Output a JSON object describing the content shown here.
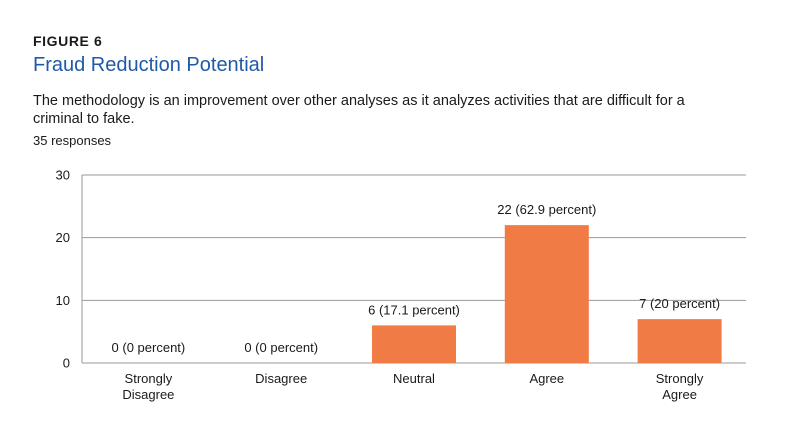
{
  "figure": {
    "label": "FIGURE 6",
    "title": "Fraud Reduction Potential",
    "subtitle": "The methodology is an improvement over other analyses as it analyzes activities that are difficult for a criminal to fake.",
    "responses": "35 responses"
  },
  "colors": {
    "bar": "#f07b45",
    "title": "#1f5aa6",
    "grid": "#9a9a9a",
    "text": "#1a1a1a"
  },
  "chart_data": {
    "type": "bar",
    "categories": [
      [
        "Strongly",
        "Disagree"
      ],
      [
        "Disagree"
      ],
      [
        "Neutral"
      ],
      [
        "Agree"
      ],
      [
        "Strongly",
        "Agree"
      ]
    ],
    "values": [
      0,
      0,
      6,
      22,
      7
    ],
    "data_labels": [
      "0 (0 percent)",
      "0 (0 percent)",
      "6 (17.1 percent)",
      "22 (62.9 percent)",
      "7 (20 percent)"
    ],
    "yticks": [
      0,
      10,
      20,
      30
    ],
    "ylim": [
      0,
      30
    ],
    "grid": true,
    "legend": "none"
  }
}
